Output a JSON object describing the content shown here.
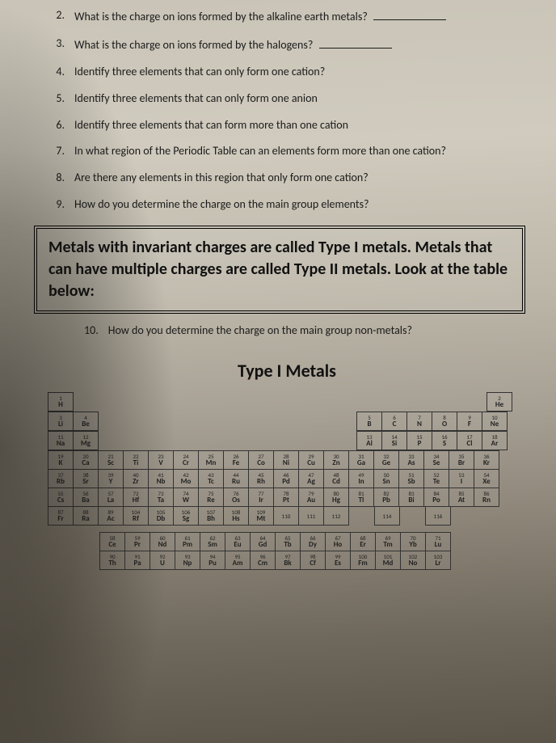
{
  "questions": [
    {
      "n": "2.",
      "text": "What is the charge on ions formed by the alkaline earth metals?",
      "blank": true
    },
    {
      "n": "3.",
      "text": "What is the charge on ions formed by the halogens?",
      "blank": true
    },
    {
      "n": "4.",
      "text": "Identify three elements that can only form one cation?",
      "blank": false
    },
    {
      "n": "5.",
      "text": "Identify three elements that can only form one anion",
      "blank": false
    },
    {
      "n": "6.",
      "text": "Identify three elements that can form more than one cation",
      "blank": false
    },
    {
      "n": "7.",
      "text": "In what region of the Periodic Table can an elements form more than one cation?",
      "blank": false
    },
    {
      "n": "8.",
      "text": "Are there any elements in this region that only form one cation?",
      "blank": false
    },
    {
      "n": "9.",
      "text": "How do you determine the charge on the main group elements?",
      "blank": false
    }
  ],
  "highlight": "Metals with invariant charges are called Type I metals.  Metals that can have multiple charges are called Type II metals.  Look at the table below:",
  "q10": {
    "n": "10.",
    "text": "How do you determine the charge on the main group non-metals?"
  },
  "section_title": "Type I Metals",
  "pt": {
    "main_rows": [
      [
        [
          1,
          "H"
        ],
        null,
        null,
        null,
        null,
        null,
        null,
        null,
        null,
        null,
        null,
        null,
        null,
        null,
        null,
        null,
        null,
        [
          2,
          "He"
        ]
      ],
      [
        [
          3,
          "Li"
        ],
        [
          4,
          "Be"
        ],
        null,
        null,
        null,
        null,
        null,
        null,
        null,
        null,
        null,
        null,
        [
          5,
          "B"
        ],
        [
          6,
          "C"
        ],
        [
          7,
          "N"
        ],
        [
          8,
          "O"
        ],
        [
          9,
          "F"
        ],
        [
          10,
          "Ne"
        ]
      ],
      [
        [
          11,
          "Na"
        ],
        [
          12,
          "Mg"
        ],
        null,
        null,
        null,
        null,
        null,
        null,
        null,
        null,
        null,
        null,
        [
          13,
          "Al"
        ],
        [
          14,
          "Si"
        ],
        [
          15,
          "P"
        ],
        [
          16,
          "S"
        ],
        [
          17,
          "Cl"
        ],
        [
          18,
          "Ar"
        ]
      ],
      [
        [
          19,
          "K"
        ],
        [
          20,
          "Ca"
        ],
        [
          21,
          "Sc"
        ],
        [
          22,
          "Ti"
        ],
        [
          23,
          "V"
        ],
        [
          24,
          "Cr"
        ],
        [
          25,
          "Mn"
        ],
        [
          26,
          "Fe"
        ],
        [
          27,
          "Co"
        ],
        [
          28,
          "Ni"
        ],
        [
          29,
          "Cu"
        ],
        [
          30,
          "Zn"
        ],
        [
          31,
          "Ga"
        ],
        [
          32,
          "Ge"
        ],
        [
          33,
          "As"
        ],
        [
          34,
          "Se"
        ],
        [
          35,
          "Br"
        ],
        [
          36,
          "Kr"
        ]
      ],
      [
        [
          37,
          "Rb"
        ],
        [
          38,
          "Sr"
        ],
        [
          39,
          "Y"
        ],
        [
          40,
          "Zr"
        ],
        [
          41,
          "Nb"
        ],
        [
          42,
          "Mo"
        ],
        [
          43,
          "Tc"
        ],
        [
          44,
          "Ru"
        ],
        [
          45,
          "Rh"
        ],
        [
          46,
          "Pd"
        ],
        [
          47,
          "Ag"
        ],
        [
          48,
          "Cd"
        ],
        [
          49,
          "In"
        ],
        [
          50,
          "Sn"
        ],
        [
          51,
          "Sb"
        ],
        [
          52,
          "Te"
        ],
        [
          53,
          "I"
        ],
        [
          54,
          "Xe"
        ]
      ],
      [
        [
          55,
          "Cs"
        ],
        [
          56,
          "Ba"
        ],
        [
          57,
          "La"
        ],
        [
          72,
          "Hf"
        ],
        [
          73,
          "Ta"
        ],
        [
          74,
          "W"
        ],
        [
          75,
          "Re"
        ],
        [
          76,
          "Os"
        ],
        [
          77,
          "Ir"
        ],
        [
          78,
          "Pt"
        ],
        [
          79,
          "Au"
        ],
        [
          80,
          "Hg"
        ],
        [
          81,
          "Tl"
        ],
        [
          82,
          "Pb"
        ],
        [
          83,
          "Bi"
        ],
        [
          84,
          "Po"
        ],
        [
          85,
          "At"
        ],
        [
          86,
          "Rn"
        ]
      ],
      [
        [
          87,
          "Fr"
        ],
        [
          88,
          "Ra"
        ],
        [
          89,
          "Ac"
        ],
        [
          104,
          "Rf"
        ],
        [
          105,
          "Db"
        ],
        [
          106,
          "Sg"
        ],
        [
          107,
          "Bh"
        ],
        [
          108,
          "Hs"
        ],
        [
          109,
          "Mt"
        ],
        [
          110,
          ""
        ],
        [
          111,
          ""
        ],
        [
          112,
          ""
        ],
        null,
        [
          114,
          ""
        ],
        null,
        [
          116,
          ""
        ],
        null,
        null
      ]
    ],
    "lan": [
      [
        58,
        "Ce"
      ],
      [
        59,
        "Pr"
      ],
      [
        60,
        "Nd"
      ],
      [
        61,
        "Pm"
      ],
      [
        62,
        "Sm"
      ],
      [
        63,
        "Eu"
      ],
      [
        64,
        "Gd"
      ],
      [
        65,
        "Tb"
      ],
      [
        66,
        "Dy"
      ],
      [
        67,
        "Ho"
      ],
      [
        68,
        "Er"
      ],
      [
        69,
        "Tm"
      ],
      [
        70,
        "Yb"
      ],
      [
        71,
        "Lu"
      ]
    ],
    "act": [
      [
        90,
        "Th"
      ],
      [
        91,
        "Pa"
      ],
      [
        92,
        "U"
      ],
      [
        93,
        "Np"
      ],
      [
        94,
        "Pu"
      ],
      [
        95,
        "Am"
      ],
      [
        96,
        "Cm"
      ],
      [
        97,
        "Bk"
      ],
      [
        98,
        "Cf"
      ],
      [
        99,
        "Es"
      ],
      [
        100,
        "Fm"
      ],
      [
        101,
        "Md"
      ],
      [
        102,
        "No"
      ],
      [
        103,
        "Lr"
      ]
    ]
  }
}
